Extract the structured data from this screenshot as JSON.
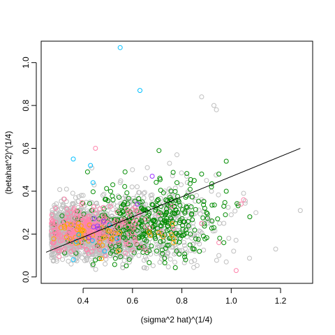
{
  "chart_data": {
    "type": "scatter",
    "title": "",
    "xlabel": "(sigma^2 hat)^(1/4)",
    "ylabel": "(betahat^2)^(1/4)",
    "xlim": [
      0.23,
      1.33
    ],
    "ylim": [
      -0.03,
      1.1
    ],
    "xticks": [
      "0.4",
      "0.6",
      "0.8",
      "1.0",
      "1.2"
    ],
    "yticks": [
      "0.0",
      "0.2",
      "0.4",
      "0.6",
      "0.8",
      "1.0"
    ],
    "grid": false,
    "legend": "none",
    "colors": {
      "gray": "#BEBEBE",
      "green": "#008B00",
      "pink": "#FF82AB",
      "orange": "#FFA500",
      "cyan": "#00BFFF",
      "purple": "#9B30FF",
      "line": "#000000"
    },
    "fit_line": {
      "x": [
        0.25,
        1.28
      ],
      "y": [
        0.115,
        0.6
      ]
    },
    "series": [
      {
        "color_key": "gray",
        "clusters": [
          {
            "cx": 0.45,
            "cy": 0.2,
            "sx": 0.12,
            "sy": 0.06,
            "n": 1100
          },
          {
            "cx": 0.35,
            "cy": 0.22,
            "sx": 0.05,
            "sy": 0.05,
            "n": 500
          },
          {
            "cx": 0.7,
            "cy": 0.25,
            "sx": 0.13,
            "sy": 0.09,
            "n": 350
          }
        ],
        "points": [
          {
            "x": 0.88,
            "y": 0.84
          },
          {
            "x": 0.93,
            "y": 0.8
          },
          {
            "x": 0.94,
            "y": 0.78
          },
          {
            "x": 1.28,
            "y": 0.31
          },
          {
            "x": 1.18,
            "y": 0.13
          },
          {
            "x": 1.1,
            "y": 0.3
          },
          {
            "x": 1.05,
            "y": 0.39
          },
          {
            "x": 1.03,
            "y": 0.34
          },
          {
            "x": 0.97,
            "y": 0.25
          },
          {
            "x": 0.78,
            "y": 0.57
          },
          {
            "x": 0.75,
            "y": 0.53
          },
          {
            "x": 0.82,
            "y": 0.47
          },
          {
            "x": 0.9,
            "y": 0.45
          },
          {
            "x": 1.0,
            "y": 0.29
          },
          {
            "x": 0.6,
            "y": 0.5
          },
          {
            "x": 0.66,
            "y": 0.51
          },
          {
            "x": 0.85,
            "y": 0.2
          },
          {
            "x": 0.95,
            "y": 0.1
          },
          {
            "x": 0.98,
            "y": 0.07
          },
          {
            "x": 0.99,
            "y": 0.18
          },
          {
            "x": 1.01,
            "y": 0.12
          },
          {
            "x": 0.92,
            "y": 0.4
          },
          {
            "x": 0.88,
            "y": 0.36
          },
          {
            "x": 0.55,
            "y": 0.44
          }
        ]
      },
      {
        "color_key": "green",
        "clusters": [
          {
            "cx": 0.62,
            "cy": 0.23,
            "sx": 0.14,
            "sy": 0.08,
            "n": 320
          },
          {
            "cx": 0.8,
            "cy": 0.3,
            "sx": 0.08,
            "sy": 0.08,
            "n": 70
          }
        ],
        "points": [
          {
            "x": 0.98,
            "y": 0.54
          },
          {
            "x": 0.95,
            "y": 0.48
          },
          {
            "x": 0.98,
            "y": 0.4
          },
          {
            "x": 0.92,
            "y": 0.42
          },
          {
            "x": 0.88,
            "y": 0.48
          },
          {
            "x": 0.85,
            "y": 0.45
          },
          {
            "x": 0.9,
            "y": 0.3
          },
          {
            "x": 0.97,
            "y": 0.33
          },
          {
            "x": 0.97,
            "y": 0.16
          },
          {
            "x": 0.93,
            "y": 0.23
          },
          {
            "x": 0.57,
            "y": 0.49
          },
          {
            "x": 0.52,
            "y": 0.43
          },
          {
            "x": 0.85,
            "y": 0.13
          },
          {
            "x": 0.78,
            "y": 0.44
          }
        ]
      },
      {
        "color_key": "pink",
        "clusters": [
          {
            "cx": 0.4,
            "cy": 0.22,
            "sx": 0.07,
            "sy": 0.05,
            "n": 260
          },
          {
            "cx": 0.55,
            "cy": 0.22,
            "sx": 0.1,
            "sy": 0.06,
            "n": 60
          }
        ],
        "points": [
          {
            "x": 0.45,
            "y": 0.6
          },
          {
            "x": 1.02,
            "y": 0.03
          },
          {
            "x": 1.05,
            "y": 0.36
          },
          {
            "x": 1.04,
            "y": 0.34
          },
          {
            "x": 0.95,
            "y": 0.16
          },
          {
            "x": 0.88,
            "y": 0.25
          },
          {
            "x": 0.76,
            "y": 0.33
          }
        ]
      },
      {
        "color_key": "orange",
        "clusters": [
          {
            "cx": 0.42,
            "cy": 0.2,
            "sx": 0.06,
            "sy": 0.04,
            "n": 40
          },
          {
            "cx": 0.72,
            "cy": 0.18,
            "sx": 0.05,
            "sy": 0.03,
            "n": 8
          }
        ],
        "points": []
      },
      {
        "color_key": "cyan",
        "clusters": [
          {
            "cx": 0.42,
            "cy": 0.18,
            "sx": 0.05,
            "sy": 0.04,
            "n": 6
          }
        ],
        "points": [
          {
            "x": 0.55,
            "y": 1.07
          },
          {
            "x": 0.63,
            "y": 0.87
          },
          {
            "x": 0.36,
            "y": 0.55
          },
          {
            "x": 0.43,
            "y": 0.52
          },
          {
            "x": 0.44,
            "y": 0.44
          },
          {
            "x": 0.36,
            "y": 0.08
          }
        ]
      },
      {
        "color_key": "purple",
        "clusters": [
          {
            "cx": 0.45,
            "cy": 0.22,
            "sx": 0.05,
            "sy": 0.04,
            "n": 6
          }
        ],
        "points": [
          {
            "x": 0.68,
            "y": 0.47
          },
          {
            "x": 0.62,
            "y": 0.34
          }
        ]
      }
    ]
  }
}
